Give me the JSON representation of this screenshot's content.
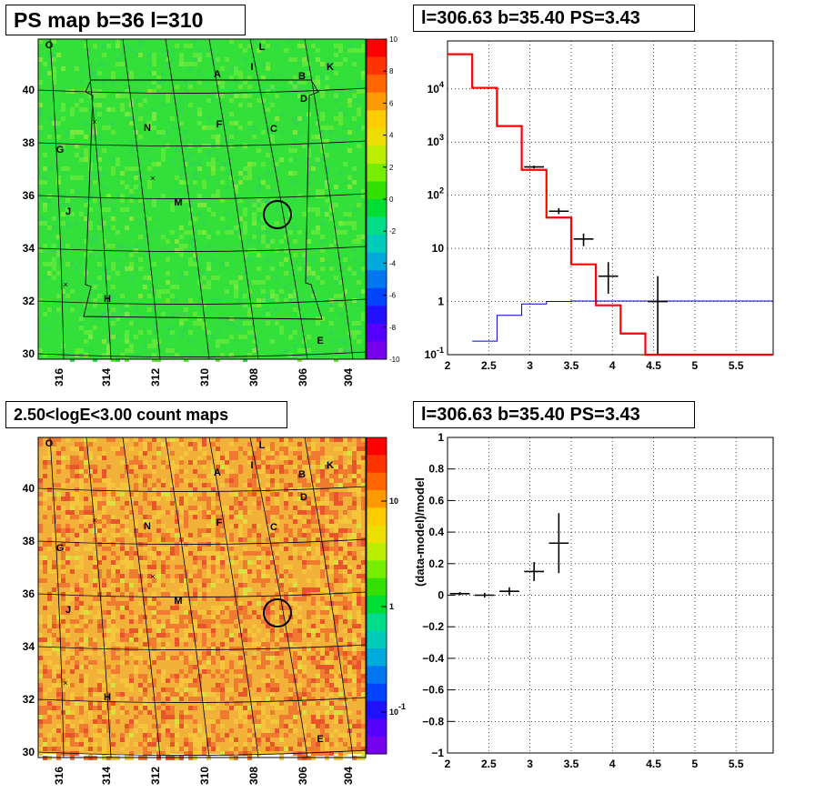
{
  "panels": {
    "ps_map": {
      "title": "PS map b=36 l=310"
    },
    "spectrum": {
      "title": "l=306.63 b=35.40 PS=3.43"
    },
    "count_map": {
      "title": "2.50<logE<3.00 count maps"
    },
    "residual": {
      "title": "l=306.63 b=35.40 PS=3.43"
    }
  },
  "sky_map": {
    "lon_ticks": [
      "316",
      "314",
      "312",
      "310",
      "308",
      "306",
      "304"
    ],
    "lat_ticks": [
      "30",
      "32",
      "34",
      "36",
      "38",
      "40"
    ],
    "region_labels": [
      "O",
      "L",
      "I",
      "A",
      "B",
      "K",
      "D",
      "N",
      "F",
      "C",
      "G",
      "M",
      "J",
      "H",
      "E"
    ],
    "source_marker": {
      "l": 306.63,
      "b": 35.4
    }
  },
  "colorbars": {
    "ps_ticks": [
      "10",
      "8",
      "6",
      "4",
      "2",
      "0",
      "-2",
      "-4",
      "-6",
      "-8",
      "-10"
    ],
    "count_ticks": [
      "10",
      "1",
      "10-1"
    ]
  },
  "colors": {
    "ps_background": "#33e03a",
    "count_background": "#f2b23a",
    "model_line": "#ff0000",
    "background_model_line": "#0000cc",
    "data_points": "#000000"
  },
  "chart_data": [
    {
      "type": "line",
      "panel": "spectrum",
      "xlabel": "",
      "ylabel": "",
      "xlim": [
        2,
        5.95
      ],
      "ylim": [
        0.1,
        80000
      ],
      "yscale": "log",
      "x_tick_labels": [
        "2",
        "2.5",
        "3",
        "3.5",
        "4",
        "4.5",
        "5",
        "5.5"
      ],
      "y_tick_labels": [
        "10-1",
        "1",
        "10",
        "10^2",
        "10^3",
        "10^4"
      ],
      "grid": true,
      "series": [
        {
          "style": "step",
          "color": "#ff0000",
          "bins": [
            [
              2.0,
              2.3,
              45000
            ],
            [
              2.3,
              2.6,
              10500
            ],
            [
              2.6,
              2.9,
              2000
            ],
            [
              2.9,
              3.2,
              300
            ],
            [
              3.2,
              3.5,
              38
            ],
            [
              3.5,
              3.8,
              5
            ],
            [
              3.8,
              4.1,
              0.85
            ],
            [
              4.1,
              4.4,
              0.25
            ],
            [
              4.4,
              5.95,
              0.1
            ]
          ]
        },
        {
          "style": "step",
          "color": "#0000cc",
          "bins": [
            [
              2.3,
              2.6,
              0.18
            ],
            [
              2.6,
              2.9,
              0.55
            ],
            [
              2.9,
              3.2,
              0.9
            ],
            [
              3.2,
              3.5,
              1.0
            ],
            [
              3.5,
              5.95,
              1.02
            ]
          ]
        },
        {
          "style": "errorbars",
          "color": "#000000",
          "points": [
            {
              "x": 3.05,
              "y": 340,
              "xerr": 0.12,
              "ylo": 320,
              "yhi": 360
            },
            {
              "x": 3.35,
              "y": 50,
              "xerr": 0.12,
              "ylo": 44,
              "yhi": 57
            },
            {
              "x": 3.65,
              "y": 15,
              "xerr": 0.12,
              "ylo": 11,
              "yhi": 19
            },
            {
              "x": 3.95,
              "y": 3,
              "xerr": 0.12,
              "ylo": 1.4,
              "yhi": 5.5
            },
            {
              "x": 4.55,
              "y": 1,
              "xerr": 0.12,
              "ylo": 0.1,
              "yhi": 3
            }
          ]
        }
      ]
    },
    {
      "type": "scatter",
      "panel": "residual",
      "xlabel": "",
      "ylabel": "(data-model)/model",
      "xlim": [
        2,
        5.95
      ],
      "ylim": [
        -1,
        1
      ],
      "x_tick_labels": [
        "2",
        "2.5",
        "3",
        "3.5",
        "4",
        "4.5",
        "5",
        "5.5"
      ],
      "y_tick_labels": [
        "-1",
        "-0.8",
        "-0.6",
        "-0.4",
        "-0.2",
        "0",
        "0.2",
        "0.4",
        "0.6",
        "0.8",
        "1"
      ],
      "grid": true,
      "series": [
        {
          "style": "errorbars",
          "color": "#000000",
          "points": [
            {
              "x": 2.15,
              "y": 0.01,
              "xerr": 0.12,
              "yerr": 0.01
            },
            {
              "x": 2.45,
              "y": 0.0,
              "xerr": 0.12,
              "yerr": 0.015
            },
            {
              "x": 2.75,
              "y": 0.025,
              "xerr": 0.12,
              "yerr": 0.025
            },
            {
              "x": 3.05,
              "y": 0.15,
              "xerr": 0.12,
              "yerr": 0.06
            },
            {
              "x": 3.35,
              "y": 0.33,
              "xerr": 0.12,
              "yerr": 0.19
            }
          ]
        }
      ]
    }
  ]
}
